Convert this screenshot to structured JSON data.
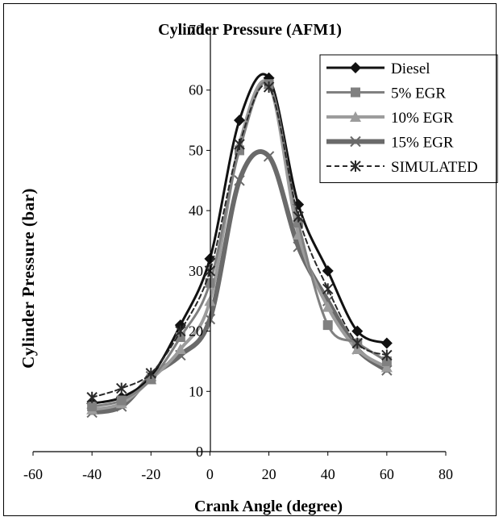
{
  "chart_data": {
    "type": "line",
    "title": "Cylinder Pressure   (AFM1)",
    "xlabel": "Crank Angle (degree)",
    "ylabel": "Cylinder Pressure (bar)",
    "xlim": [
      -60,
      80
    ],
    "ylim": [
      0,
      70
    ],
    "x_ticks": [
      "-60",
      "-40",
      "-20",
      "0",
      "20",
      "40",
      "60",
      "80"
    ],
    "y_ticks": [
      "0",
      "10",
      "20",
      "30",
      "40",
      "50",
      "60",
      "70"
    ],
    "legend_position": "top-right",
    "grid": false,
    "x": [
      -40,
      -30,
      -20,
      -10,
      0,
      10,
      20,
      30,
      40,
      50,
      60
    ],
    "series": [
      {
        "name": "Diesel",
        "color": "#111111",
        "marker": "diamond",
        "dashed": false,
        "line_width": 3,
        "values": [
          8,
          9,
          12.5,
          21,
          32,
          55,
          62,
          41,
          30,
          20,
          18
        ]
      },
      {
        "name": "5% EGR",
        "color": "#808080",
        "marker": "square",
        "dashed": false,
        "line_width": 3,
        "values": [
          7.5,
          8.5,
          12,
          19,
          28,
          50,
          61,
          38,
          21,
          18,
          15
        ]
      },
      {
        "name": "10% EGR",
        "color": "#9c9c9c",
        "marker": "triangle",
        "dashed": false,
        "line_width": 4,
        "values": [
          7,
          8,
          12,
          17,
          25,
          51,
          61,
          36,
          24,
          17,
          14
        ]
      },
      {
        "name": "15% EGR",
        "color": "#6a6a6a",
        "marker": "x",
        "dashed": false,
        "line_width": 6,
        "values": [
          6.5,
          7.5,
          12.5,
          16,
          22,
          45,
          49,
          34,
          25,
          17,
          13.5
        ]
      },
      {
        "name": "SIMULATED",
        "color": "#2a2a2a",
        "marker": "star",
        "dashed": true,
        "line_width": 2,
        "values": [
          9,
          10.5,
          13,
          20,
          30,
          51,
          60.5,
          39,
          27,
          18,
          16
        ]
      }
    ]
  }
}
